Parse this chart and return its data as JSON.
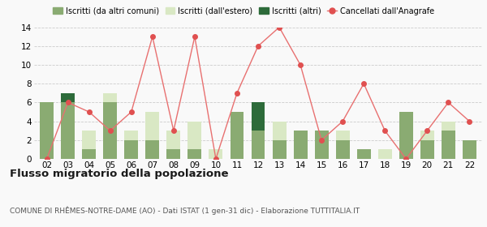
{
  "years": [
    "02",
    "03",
    "04",
    "05",
    "06",
    "07",
    "08",
    "09",
    "10",
    "11",
    "12",
    "13",
    "14",
    "15",
    "16",
    "17",
    "18",
    "19",
    "20",
    "21",
    "22"
  ],
  "iscritti_altri_comuni": [
    6,
    6,
    1,
    6,
    2,
    2,
    1,
    1,
    0,
    5,
    3,
    2,
    3,
    3,
    2,
    1,
    0,
    5,
    2,
    3,
    2
  ],
  "iscritti_estero": [
    0,
    0,
    2,
    1,
    1,
    3,
    2,
    3,
    1,
    0,
    0,
    2,
    0,
    0,
    1,
    0,
    1,
    0,
    1,
    1,
    0
  ],
  "iscritti_altri": [
    0,
    1,
    0,
    0,
    0,
    0,
    0,
    0,
    0,
    0,
    3,
    0,
    0,
    0,
    0,
    0,
    0,
    0,
    0,
    0,
    0
  ],
  "cancellati": [
    0,
    6,
    5,
    3,
    5,
    13,
    3,
    13,
    0,
    7,
    12,
    14,
    10,
    2,
    4,
    8,
    3,
    0,
    3,
    6,
    4
  ],
  "color_altri_comuni": "#8aab72",
  "color_estero": "#d9e8c4",
  "color_altri": "#2d6b3a",
  "color_cancellati": "#e05050",
  "color_cancellati_line": "#e87070",
  "title": "Flusso migratorio della popolazione",
  "subtitle": "COMUNE DI RHÊMES-NOTRE-DAME (AO) - Dati ISTAT (1 gen-31 dic) - Elaborazione TUTTITALIA.IT",
  "legend_labels": [
    "Iscritti (da altri comuni)",
    "Iscritti (dall'estero)",
    "Iscritti (altri)",
    "Cancellati dall'Anagrafe"
  ],
  "ylim": [
    0,
    14
  ],
  "yticks": [
    0,
    2,
    4,
    6,
    8,
    10,
    12,
    14
  ],
  "background_color": "#f9f9f9",
  "grid_color": "#cccccc"
}
